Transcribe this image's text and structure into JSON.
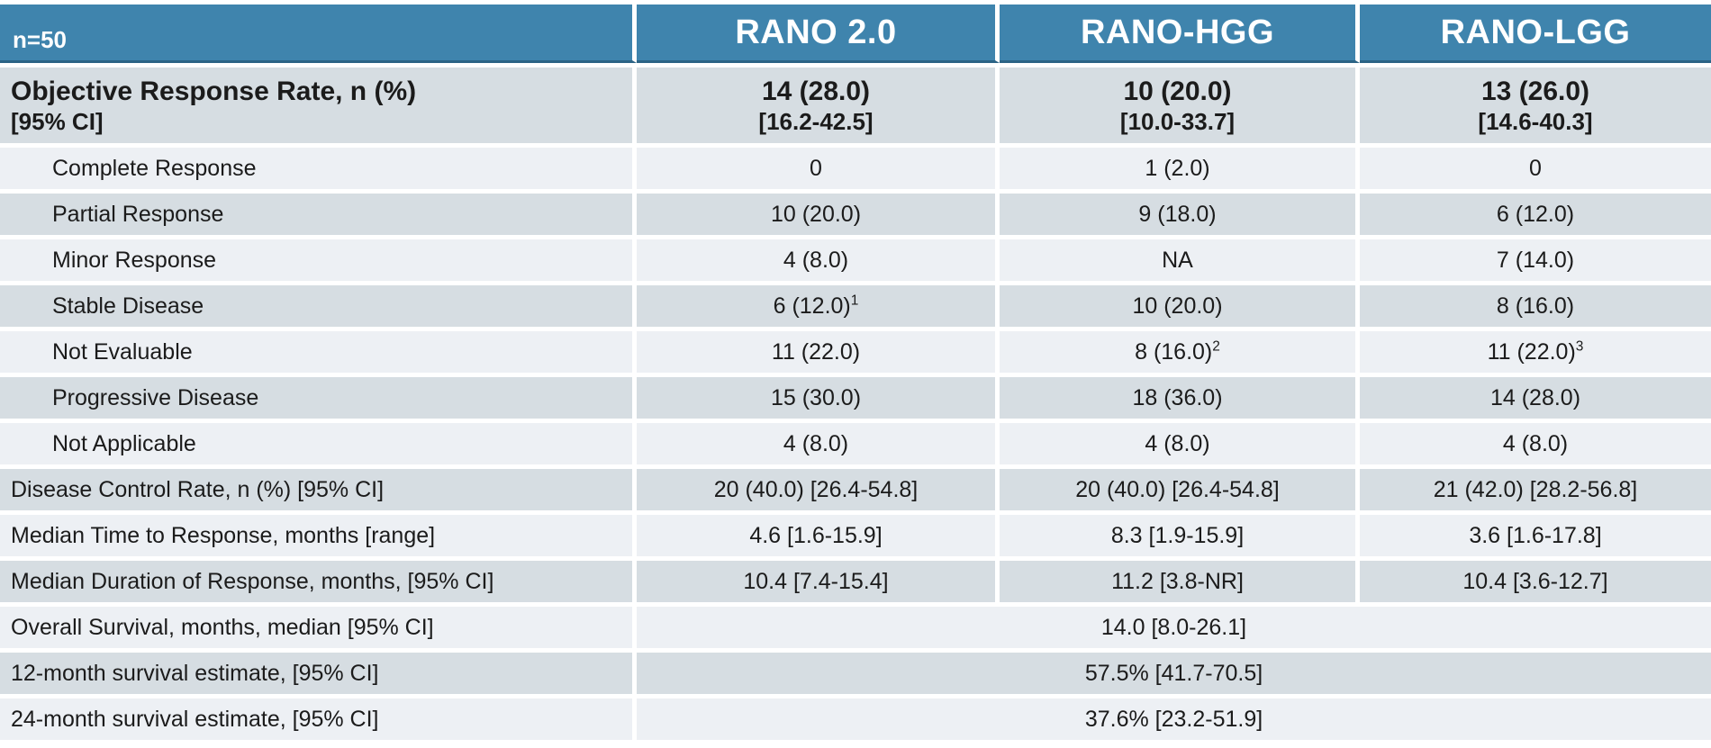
{
  "header": {
    "n_label": "n=50",
    "columns": [
      "RANO 2.0",
      "RANO-HGG",
      "RANO-LGG"
    ]
  },
  "orr": {
    "label_line1": "Objective Response Rate, n (%)",
    "label_line2": "[95% CI]",
    "values": [
      {
        "line1": "14 (28.0)",
        "line2": "[16.2-42.5]"
      },
      {
        "line1": "10 (20.0)",
        "line2": "[10.0-33.7]"
      },
      {
        "line1": "13 (26.0)",
        "line2": "[14.6-40.3]"
      }
    ]
  },
  "rows": [
    {
      "label": "Complete Response",
      "values": [
        {
          "text": "0"
        },
        {
          "text": "1 (2.0)"
        },
        {
          "text": "0"
        }
      ]
    },
    {
      "label": "Partial Response",
      "values": [
        {
          "text": "10 (20.0)"
        },
        {
          "text": "9 (18.0)"
        },
        {
          "text": "6 (12.0)"
        }
      ]
    },
    {
      "label": "Minor Response",
      "values": [
        {
          "text": "4 (8.0)"
        },
        {
          "text": "NA"
        },
        {
          "text": "7 (14.0)"
        }
      ]
    },
    {
      "label": "Stable Disease",
      "values": [
        {
          "text": "6 (12.0)",
          "sup": "1"
        },
        {
          "text": "10 (20.0)"
        },
        {
          "text": "8 (16.0)"
        }
      ]
    },
    {
      "label": "Not Evaluable",
      "values": [
        {
          "text": "11 (22.0)"
        },
        {
          "text": "8 (16.0)",
          "sup": "2"
        },
        {
          "text": "11 (22.0)",
          "sup": "3"
        }
      ]
    },
    {
      "label": "Progressive Disease",
      "values": [
        {
          "text": "15 (30.0)"
        },
        {
          "text": "18 (36.0)"
        },
        {
          "text": "14 (28.0)"
        }
      ]
    },
    {
      "label": "Not Applicable",
      "values": [
        {
          "text": "4 (8.0)"
        },
        {
          "text": "4 (8.0)"
        },
        {
          "text": "4 (8.0)"
        }
      ]
    },
    {
      "label": "Disease Control Rate, n (%) [95% CI]",
      "values": [
        {
          "text": "20 (40.0) [26.4-54.8]"
        },
        {
          "text": "20 (40.0) [26.4-54.8]"
        },
        {
          "text": "21 (42.0) [28.2-56.8]"
        }
      ]
    },
    {
      "label": "Median Time to Response, months [range]",
      "values": [
        {
          "text": "4.6 [1.6-15.9]"
        },
        {
          "text": "8.3 [1.9-15.9]"
        },
        {
          "text": "3.6 [1.6-17.8]"
        }
      ]
    },
    {
      "label": "Median Duration of Response, months, [95% CI]",
      "values": [
        {
          "text": "10.4 [7.4-15.4]"
        },
        {
          "text": "11.2 [3.8-NR]"
        },
        {
          "text": "10.4 [3.6-12.7]"
        }
      ]
    }
  ],
  "span_rows": [
    {
      "label": "Overall Survival, months, median [95% CI]",
      "value": "14.0 [8.0-26.1]"
    },
    {
      "label": "12-month survival estimate, [95% CI]",
      "value": "57.5% [41.7-70.5]"
    },
    {
      "label": "24-month survival estimate, [95% CI]",
      "value": "37.6% [23.2-51.9]"
    }
  ],
  "colors": {
    "header_blue": "#3f84ad",
    "header_border": "#2b6385",
    "stripe_dark": "#d6dde2",
    "stripe_light": "#edf0f4",
    "text": "#1b1b1b"
  }
}
